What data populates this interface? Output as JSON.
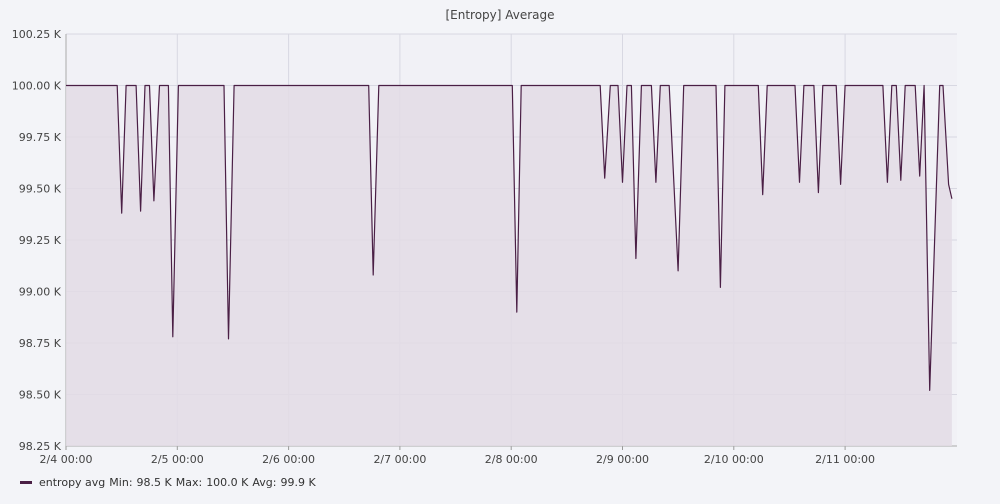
{
  "chart_data": {
    "type": "area",
    "title": "[Entropy] Average",
    "xlabel": "",
    "ylabel": "",
    "ylim": [
      98.25,
      100.25
    ],
    "y_unit": "K",
    "yticks": [
      "100.25 K",
      "100.00 K",
      "99.75 K",
      "99.50 K",
      "99.25 K",
      "99.00 K",
      "98.75 K",
      "98.50 K",
      "98.25 K"
    ],
    "xticks": [
      "2/4 00:00",
      "2/5 00:00",
      "2/6 00:00",
      "2/7 00:00",
      "2/8 00:00",
      "2/9 00:00",
      "2/10 00:00",
      "2/11 00:00"
    ],
    "xrange_days": [
      0,
      7.98
    ],
    "grid": true,
    "legend_position": "bottom-left",
    "series": [
      {
        "name": "entropy avg",
        "color": "#4a1f45",
        "fill": "#e3dce5",
        "stats": {
          "min_label": "Min:",
          "min": "98.5 K",
          "max_label": "Max:",
          "max": "100.0 K",
          "avg_label": "Avg:",
          "avg": "99.9 K"
        },
        "points": [
          [
            0.0,
            100.0
          ],
          [
            0.46,
            100.0
          ],
          [
            0.5,
            99.38
          ],
          [
            0.54,
            100.0
          ],
          [
            0.63,
            100.0
          ],
          [
            0.67,
            99.39
          ],
          [
            0.71,
            100.0
          ],
          [
            0.75,
            100.0
          ],
          [
            0.79,
            99.44
          ],
          [
            0.84,
            100.0
          ],
          [
            0.92,
            100.0
          ],
          [
            0.96,
            98.78
          ],
          [
            1.01,
            100.0
          ],
          [
            1.42,
            100.0
          ],
          [
            1.46,
            98.77
          ],
          [
            1.51,
            100.0
          ],
          [
            2.72,
            100.0
          ],
          [
            2.76,
            99.08
          ],
          [
            2.81,
            100.0
          ],
          [
            4.01,
            100.0
          ],
          [
            4.05,
            98.9
          ],
          [
            4.09,
            100.0
          ],
          [
            4.8,
            100.0
          ],
          [
            4.84,
            99.55
          ],
          [
            4.89,
            100.0
          ],
          [
            4.96,
            100.0
          ],
          [
            5.0,
            99.53
          ],
          [
            5.04,
            100.0
          ],
          [
            5.08,
            100.0
          ],
          [
            5.12,
            99.16
          ],
          [
            5.17,
            100.0
          ],
          [
            5.26,
            100.0
          ],
          [
            5.3,
            99.53
          ],
          [
            5.34,
            100.0
          ],
          [
            5.42,
            100.0
          ],
          [
            5.5,
            99.1
          ],
          [
            5.55,
            100.0
          ],
          [
            5.84,
            100.0
          ],
          [
            5.88,
            99.02
          ],
          [
            5.92,
            100.0
          ],
          [
            6.22,
            100.0
          ],
          [
            6.26,
            99.47
          ],
          [
            6.3,
            100.0
          ],
          [
            6.55,
            100.0
          ],
          [
            6.59,
            99.53
          ],
          [
            6.63,
            100.0
          ],
          [
            6.72,
            100.0
          ],
          [
            6.76,
            99.48
          ],
          [
            6.8,
            100.0
          ],
          [
            6.92,
            100.0
          ],
          [
            6.96,
            99.52
          ],
          [
            7.0,
            100.0
          ],
          [
            7.34,
            100.0
          ],
          [
            7.38,
            99.53
          ],
          [
            7.42,
            100.0
          ],
          [
            7.46,
            100.0
          ],
          [
            7.5,
            99.54
          ],
          [
            7.54,
            100.0
          ],
          [
            7.63,
            100.0
          ],
          [
            7.67,
            99.56
          ],
          [
            7.71,
            100.0
          ],
          [
            7.76,
            98.52
          ],
          [
            7.85,
            100.0
          ],
          [
            7.88,
            100.0
          ],
          [
            7.93,
            99.52
          ],
          [
            7.96,
            99.45
          ]
        ]
      }
    ]
  }
}
